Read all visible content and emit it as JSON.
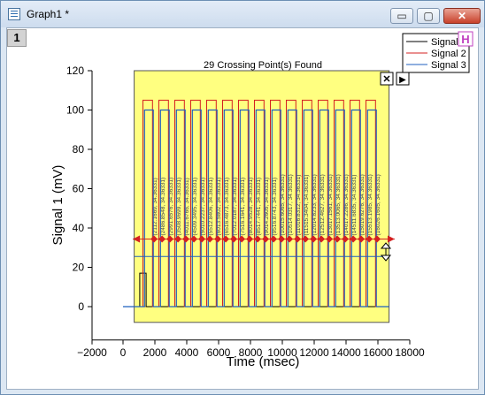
{
  "window": {
    "title": "Graph1 *",
    "minimize_glyph": "▭",
    "maximize_glyph": "▢",
    "close_glyph": "✕"
  },
  "layer_tab": "1",
  "legend": {
    "items": [
      {
        "label": "Signal",
        "color": "#000000"
      },
      {
        "label": "Signal 2",
        "color": "#d42020"
      },
      {
        "label": "Signal 3",
        "color": "#1f5fbf"
      }
    ]
  },
  "hide_badge": "H",
  "close_marker_glyph": "✕",
  "arrow_marker_glyph": "▶",
  "chart_data": {
    "type": "line",
    "title": "29 Crossing Point(s) Found",
    "xlabel": "Time (msec)",
    "ylabel": "Signal 1 (mV)",
    "xlim": [
      -2000,
      18000
    ],
    "ylim": [
      -8,
      120
    ],
    "x_ticks": [
      -2000,
      0,
      2000,
      4000,
      6000,
      8000,
      10000,
      12000,
      14000,
      16000,
      18000
    ],
    "x_tick_labels": [
      "−2000",
      "0",
      "2000",
      "4000",
      "6000",
      "8000",
      "10000",
      "12000",
      "14000",
      "16000",
      "18000"
    ],
    "y_ticks": [
      0,
      20,
      40,
      60,
      80,
      100,
      120
    ],
    "y_tick_labels": [
      "0",
      "20",
      "40",
      "60",
      "80",
      "100",
      "120"
    ],
    "highlight_region": {
      "x_start": 700,
      "x_end": 16700,
      "color": "#ffff80"
    },
    "crossing_level": 34.36,
    "blue_level": 25.5,
    "series": [
      {
        "name": "Signal",
        "color": "#000000"
      },
      {
        "name": "Signal 2",
        "color": "#d42020",
        "low": 0,
        "high": 105
      },
      {
        "name": "Signal 3",
        "color": "#1f5fbf",
        "low": 0,
        "high": 100
      }
    ],
    "pulses": [
      {
        "rise": 1350,
        "fall": 1900
      },
      {
        "rise": 2350,
        "fall": 2900
      },
      {
        "rise": 3350,
        "fall": 3900
      },
      {
        "rise": 4350,
        "fall": 4900
      },
      {
        "rise": 5350,
        "fall": 5900
      },
      {
        "rise": 6350,
        "fall": 6900
      },
      {
        "rise": 7350,
        "fall": 7900
      },
      {
        "rise": 8350,
        "fall": 8900
      },
      {
        "rise": 9350,
        "fall": 9900
      },
      {
        "rise": 10350,
        "fall": 10900
      },
      {
        "rise": 11350,
        "fall": 11900
      },
      {
        "rise": 12350,
        "fall": 12900
      },
      {
        "rise": 13350,
        "fall": 13900
      },
      {
        "rise": 14350,
        "fall": 14900
      },
      {
        "rise": 15350,
        "fall": 15900
      }
    ],
    "crossing_labels": [
      {
        "x": 1950,
        "text": "(2112.1669, 34.36331)"
      },
      {
        "x": 2450,
        "text": "(2486.8548, 34.36331)"
      },
      {
        "x": 2950,
        "text": "(2991.6576, 34.36331)"
      },
      {
        "x": 3450,
        "text": "(3508.9699, 34.36331)"
      },
      {
        "x": 3950,
        "text": "(4011.6766, 34.36331)"
      },
      {
        "x": 4450,
        "text": "(4509.3495, 34.36331)"
      },
      {
        "x": 4950,
        "text": "(5010.2237, 34.36331)"
      },
      {
        "x": 5450,
        "text": "(5512.8406, 34.36331)"
      },
      {
        "x": 5950,
        "text": "(6013.5802, 34.36331)"
      },
      {
        "x": 6450,
        "text": "(6516.4873, 34.36331)"
      },
      {
        "x": 6950,
        "text": "(7012.0187, 34.36331)"
      },
      {
        "x": 7450,
        "text": "(7516.1641, 34.36331)"
      },
      {
        "x": 7950,
        "text": "(8014.9528, 34.36331)"
      },
      {
        "x": 8450,
        "text": "(8517.7441, 34.36331)"
      },
      {
        "x": 8950,
        "text": "(9014.2605, 34.36331)"
      },
      {
        "x": 9450,
        "text": "(9516.8743, 34.36331)"
      },
      {
        "x": 9950,
        "text": "(10015.6065, 34.36331)"
      },
      {
        "x": 10450,
        "text": "(10514.0317, 34.36331)"
      },
      {
        "x": 10950,
        "text": "(11016.8312, 34.36331)"
      },
      {
        "x": 11450,
        "text": "(11515.3404, 34.36331)"
      },
      {
        "x": 11950,
        "text": "(12014.8233, 34.36331)"
      },
      {
        "x": 12450,
        "text": "(12512.4627, 34.36331)"
      },
      {
        "x": 12950,
        "text": "(13017.1561, 34.36331)"
      },
      {
        "x": 13450,
        "text": "(13513.0065, 34.36331)"
      },
      {
        "x": 13950,
        "text": "(14017.2286, 34.36331)"
      },
      {
        "x": 14450,
        "text": "(14511.6835, 34.36331)"
      },
      {
        "x": 14950,
        "text": "(15019.6276, 34.36331)"
      },
      {
        "x": 15450,
        "text": "(15513.1985, 34.36331)"
      },
      {
        "x": 15950,
        "text": "(16026.1605, 34.36331)"
      }
    ]
  }
}
